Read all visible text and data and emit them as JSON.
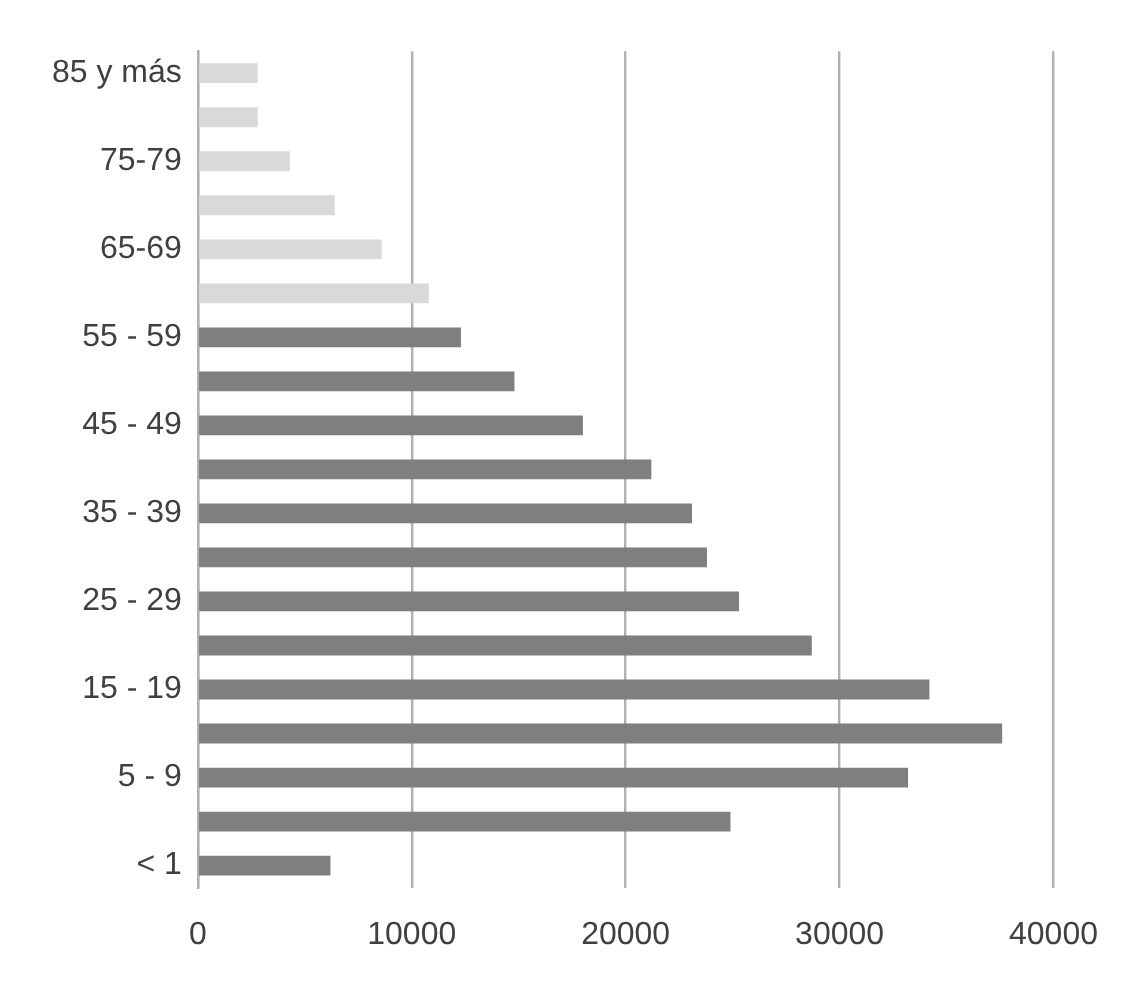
{
  "chart_data": {
    "type": "bar",
    "orientation": "horizontal",
    "categories": [
      "85 y más",
      null,
      "75-79",
      null,
      "65-69",
      null,
      "55 - 59",
      null,
      "45 - 49",
      null,
      "35 - 39",
      null,
      "25 - 29",
      null,
      "15 - 19",
      null,
      "5 - 9",
      null,
      "< 1"
    ],
    "values": [
      2800,
      2800,
      4300,
      6400,
      8600,
      10800,
      12300,
      14800,
      18000,
      21200,
      23100,
      23800,
      25300,
      28700,
      34200,
      37600,
      33200,
      24900,
      6200
    ],
    "colors": [
      "#d9d9d9",
      "#d9d9d9",
      "#d9d9d9",
      "#d9d9d9",
      "#d9d9d9",
      "#d9d9d9",
      "#7f7f7f",
      "#7f7f7f",
      "#7f7f7f",
      "#7f7f7f",
      "#7f7f7f",
      "#7f7f7f",
      "#7f7f7f",
      "#7f7f7f",
      "#7f7f7f",
      "#7f7f7f",
      "#7f7f7f",
      "#7f7f7f",
      "#7f7f7f"
    ],
    "xlim": [
      0,
      40000
    ],
    "xticks": [
      0,
      10000,
      20000,
      30000,
      40000
    ],
    "grid": "x",
    "legend": false
  }
}
